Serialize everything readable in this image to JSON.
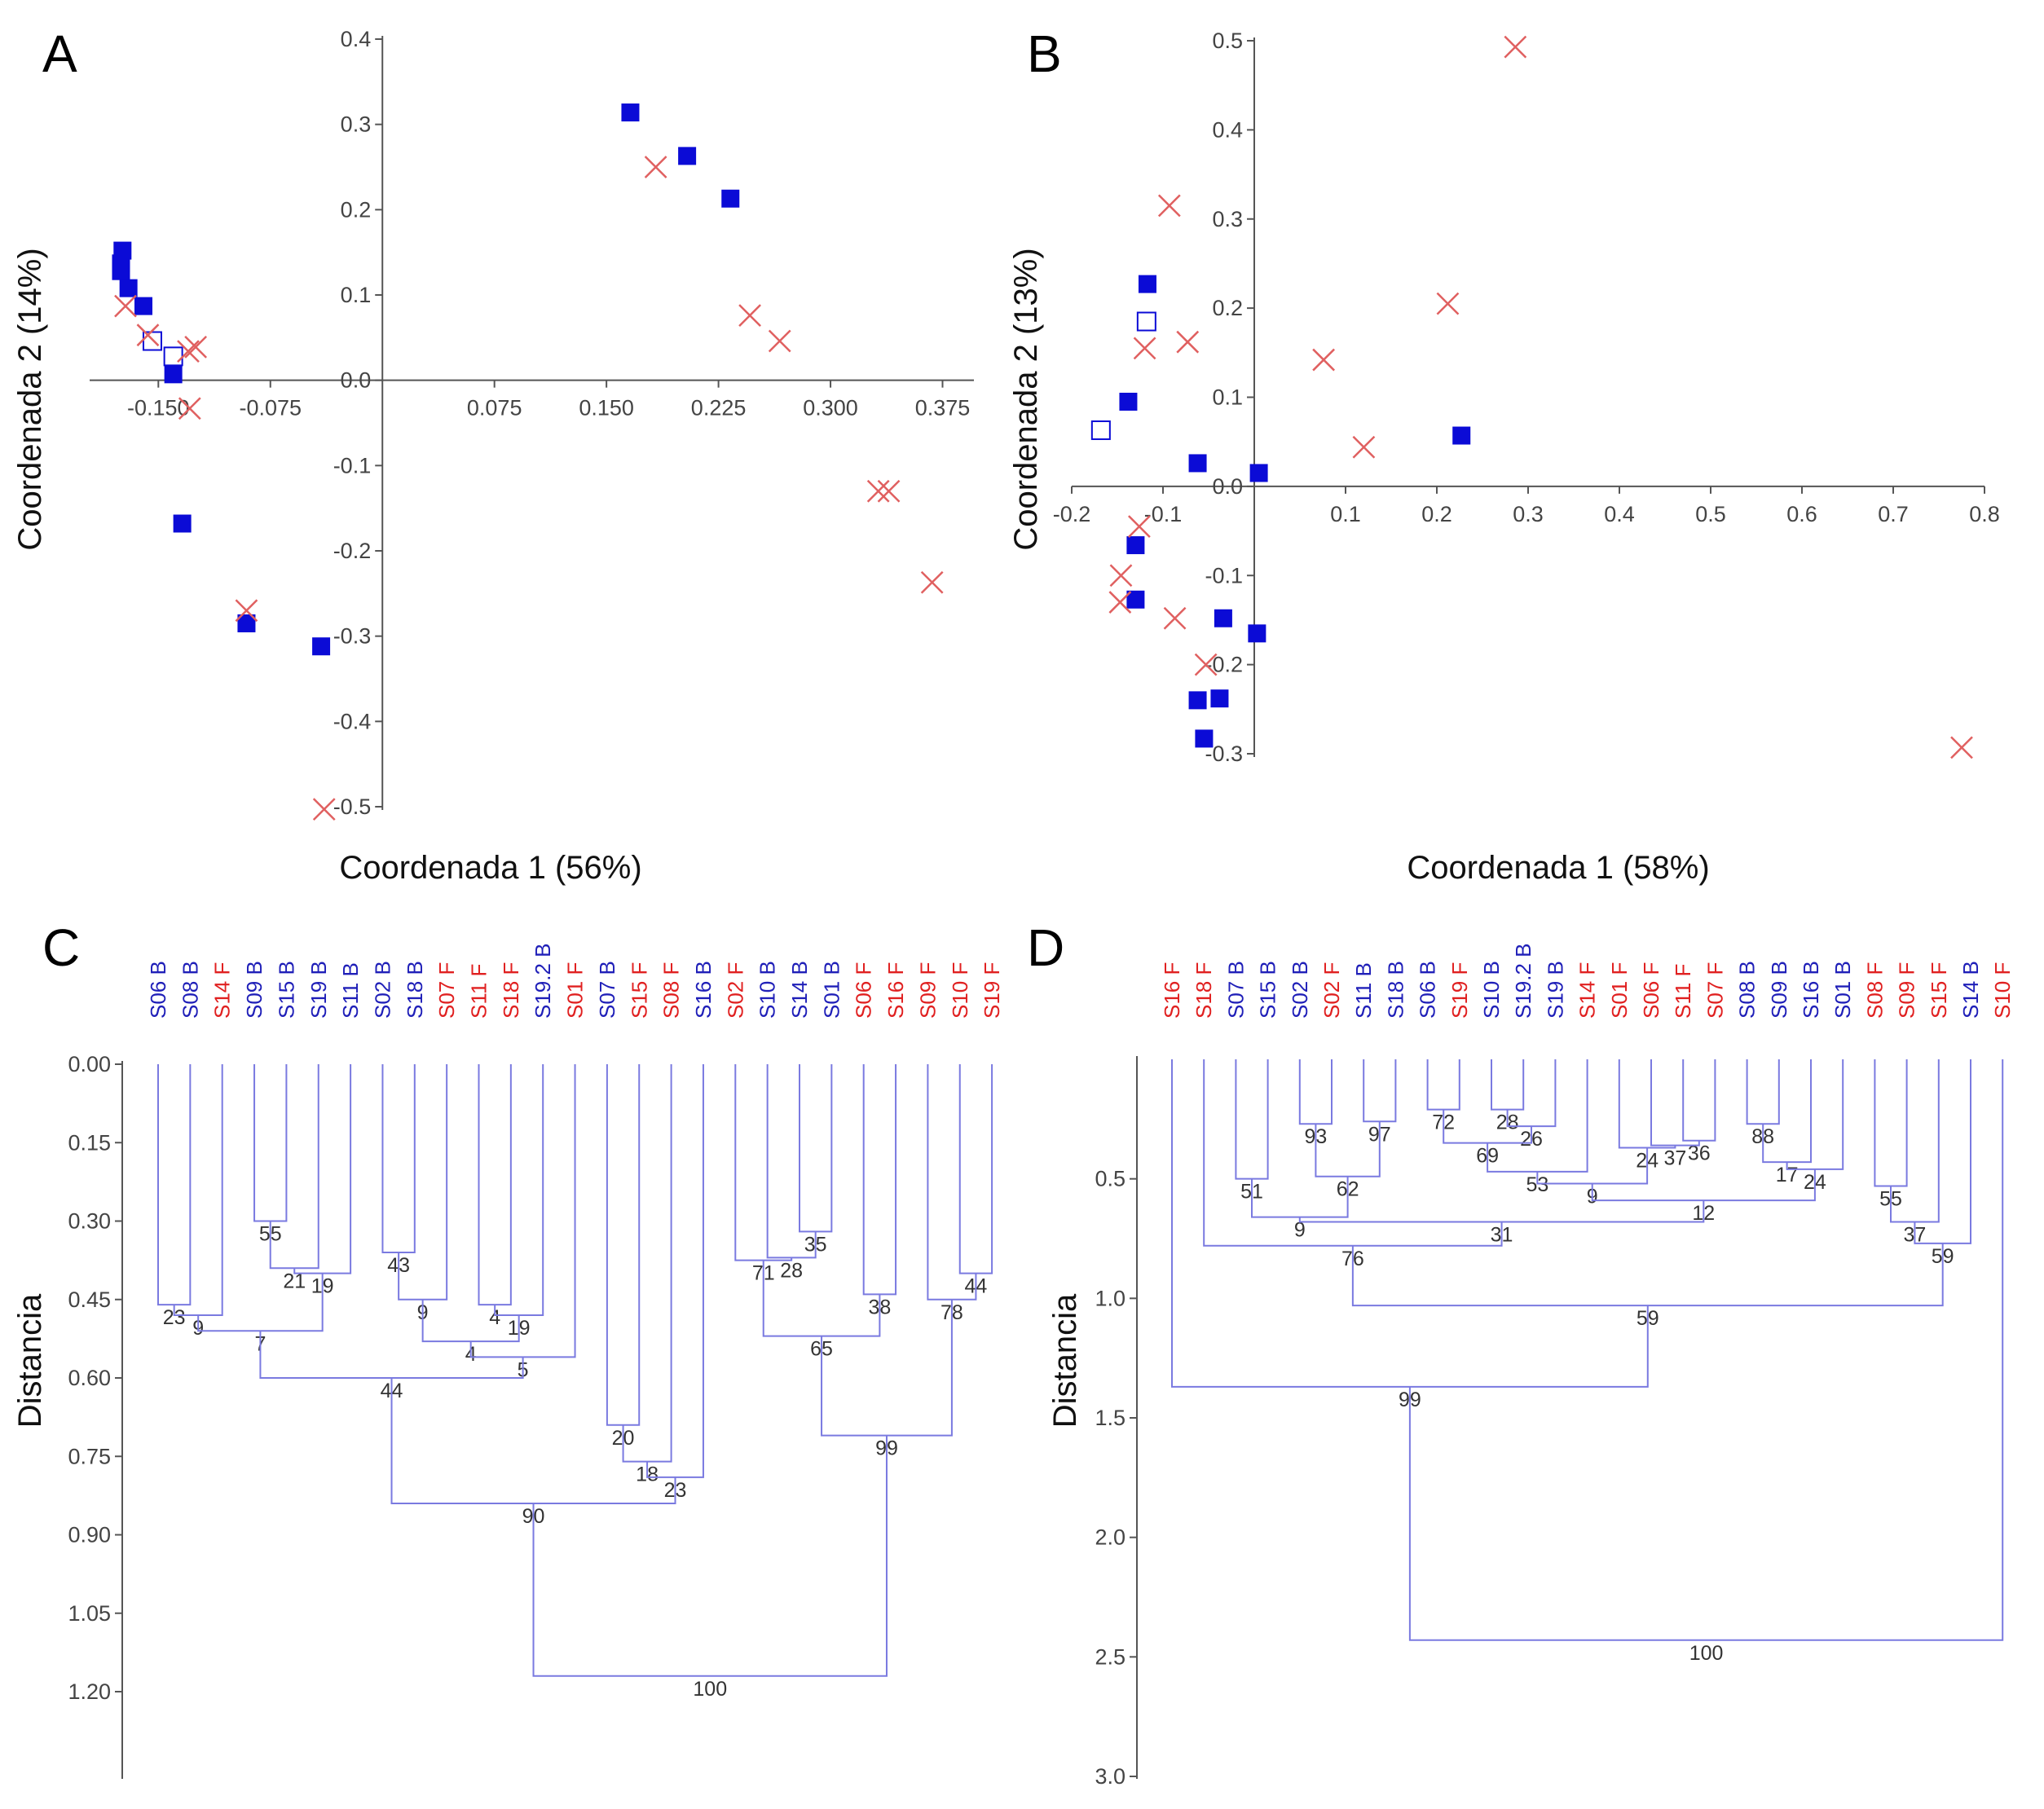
{
  "figure": {
    "colors": {
      "B": "#1f1fb8",
      "F": "#e02020",
      "marker_blue": "#0b0bd6",
      "marker_red": "#e06060",
      "tree": "#7a7ae0",
      "axis": "#555555"
    }
  },
  "chart_data": [
    {
      "panel": "A",
      "type": "scatter",
      "xlabel": "Coordenada 1 (56%)",
      "ylabel": "Coordenada 2 (14%)",
      "xlim": [
        -0.196,
        0.396
      ],
      "ylim": [
        -0.5,
        0.4
      ],
      "xticks": [
        "-0.150",
        "-0.075",
        "0.075",
        "0.150",
        "0.225",
        "0.300",
        "0.375"
      ],
      "xtick_values": [
        -0.15,
        -0.075,
        0.075,
        0.15,
        0.225,
        0.3,
        0.375
      ],
      "yticks": [
        "0.4",
        "0.3",
        "0.2",
        "0.1",
        "0.0",
        "-0.1",
        "-0.2",
        "-0.3",
        "-0.4",
        "-0.5"
      ],
      "ytick_values": [
        0.4,
        0.3,
        0.2,
        0.1,
        0.0,
        -0.1,
        -0.2,
        -0.3,
        -0.4,
        -0.5
      ],
      "series": [
        {
          "name": "B",
          "marker": "filled-square",
          "points": [
            [
              -0.174,
              0.152
            ],
            [
              -0.175,
              0.137
            ],
            [
              -0.175,
              0.128
            ],
            [
              -0.17,
              0.108
            ],
            [
              -0.16,
              0.087
            ],
            [
              -0.14,
              0.007
            ],
            [
              -0.134,
              -0.168
            ],
            [
              -0.091,
              -0.285
            ],
            [
              -0.041,
              -0.312
            ],
            [
              0.166,
              0.314
            ],
            [
              0.204,
              0.263
            ],
            [
              0.233,
              0.213
            ]
          ]
        },
        {
          "name": "B-open",
          "marker": "open-square",
          "points": [
            [
              -0.154,
              0.046
            ],
            [
              -0.14,
              0.028
            ]
          ]
        },
        {
          "name": "F",
          "marker": "cross",
          "points": [
            [
              -0.172,
              0.087
            ],
            [
              -0.157,
              0.053
            ],
            [
              -0.13,
              0.034
            ],
            [
              -0.125,
              0.039
            ],
            [
              -0.129,
              -0.033
            ],
            [
              -0.091,
              -0.27
            ],
            [
              -0.039,
              -0.503
            ],
            [
              0.183,
              0.25
            ],
            [
              0.246,
              0.076
            ],
            [
              0.266,
              0.046
            ],
            [
              0.332,
              -0.13
            ],
            [
              0.339,
              -0.13
            ],
            [
              0.368,
              -0.237
            ]
          ]
        }
      ]
    },
    {
      "panel": "B",
      "type": "scatter",
      "xlabel": "Coordenada 1 (58%)",
      "ylabel": "Coordenada 2 (13%)",
      "xlim": [
        -0.2,
        0.8
      ],
      "ylim": [
        -0.3,
        0.5
      ],
      "xticks": [
        "-0.2",
        "-0.1",
        "0.1",
        "0.2",
        "0.3",
        "0.4",
        "0.5",
        "0.6",
        "0.7",
        "0.8"
      ],
      "xtick_values": [
        -0.2,
        -0.1,
        0.1,
        0.2,
        0.3,
        0.4,
        0.5,
        0.6,
        0.7,
        0.8
      ],
      "yticks": [
        "0.5",
        "0.4",
        "0.3",
        "0.2",
        "0.1",
        "0.0",
        "-0.1",
        "-0.2",
        "-0.3"
      ],
      "ytick_values": [
        0.5,
        0.4,
        0.3,
        0.2,
        0.1,
        0.0,
        -0.1,
        -0.2,
        -0.3
      ],
      "series": [
        {
          "name": "B",
          "marker": "filled-square",
          "points": [
            [
              -0.117,
              0.227
            ],
            [
              -0.138,
              0.095
            ],
            [
              -0.062,
              0.026
            ],
            [
              0.005,
              0.015
            ],
            [
              0.227,
              0.057
            ],
            [
              -0.13,
              -0.066
            ],
            [
              -0.13,
              -0.127
            ],
            [
              -0.034,
              -0.148
            ],
            [
              0.003,
              -0.165
            ],
            [
              -0.062,
              -0.24
            ],
            [
              -0.038,
              -0.238
            ],
            [
              -0.055,
              -0.283
            ]
          ]
        },
        {
          "name": "B-open",
          "marker": "open-square",
          "points": [
            [
              -0.118,
              0.185
            ],
            [
              -0.168,
              0.063
            ]
          ]
        },
        {
          "name": "F",
          "marker": "cross",
          "points": [
            [
              0.286,
              0.493
            ],
            [
              -0.093,
              0.315
            ],
            [
              -0.12,
              0.155
            ],
            [
              -0.073,
              0.162
            ],
            [
              0.076,
              0.142
            ],
            [
              0.12,
              0.044
            ],
            [
              0.212,
              0.205
            ],
            [
              -0.126,
              -0.045
            ],
            [
              -0.146,
              -0.1
            ],
            [
              -0.147,
              -0.13
            ],
            [
              -0.087,
              -0.148
            ],
            [
              -0.053,
              -0.2
            ],
            [
              0.775,
              -0.293
            ]
          ]
        }
      ]
    },
    {
      "panel": "C",
      "type": "dendrogram",
      "ylabel": "Distancia",
      "ylim": [
        0.0,
        1.32
      ],
      "yticks": [
        "0.00",
        "0.15",
        "0.30",
        "0.45",
        "0.60",
        "0.75",
        "0.90",
        "1.05",
        "1.20"
      ],
      "ytick_values": [
        0.0,
        0.15,
        0.3,
        0.45,
        0.6,
        0.75,
        0.9,
        1.05,
        1.2
      ],
      "leaves": [
        "S06 B",
        "S08 B",
        "S14 F",
        "S09 B",
        "S15 B",
        "S19 B",
        "S11 B",
        "S02 B",
        "S18 B",
        "S07 F",
        "S11 F",
        "S18 F",
        "S19.2 B",
        "S01 F",
        "S07 B",
        "S15 F",
        "S08 F",
        "S16 B",
        "S02 F",
        "S10 B",
        "S14 B",
        "S01 B",
        "S06 F",
        "S16 F",
        "S09 F",
        "S10 F",
        "S19 F"
      ],
      "merges": [
        {
          "a": 3,
          "b": 4,
          "h": 0.3,
          "label": "55"
        },
        {
          "a": 25,
          "b": 26,
          "h": 0.4,
          "label": "44"
        },
        {
          "a": 20,
          "b": 21,
          "h": 0.32,
          "label": "35"
        },
        {
          "a": 7,
          "b": 8,
          "h": 0.36,
          "label": "43"
        },
        {
          "a": 19,
          "b": "m2",
          "h": 0.37,
          "label": "28"
        },
        {
          "a": 18,
          "b": "m4",
          "h": 0.375,
          "label": "71"
        },
        {
          "a": "m0",
          "b": 5,
          "h": 0.39,
          "label": "21"
        },
        {
          "a": "m6",
          "b": 6,
          "h": 0.4,
          "label": "19"
        },
        {
          "a": 0,
          "b": 1,
          "h": 0.46,
          "label": "23"
        },
        {
          "a": 10,
          "b": 11,
          "h": 0.46,
          "label": "4"
        },
        {
          "a": "m9",
          "b": 12,
          "h": 0.48,
          "label": "19"
        },
        {
          "a": 24,
          "b": "m1",
          "h": 0.45,
          "label": "78"
        },
        {
          "a": "m3",
          "b": 9,
          "h": 0.45,
          "label": "9"
        },
        {
          "a": "m12",
          "b": "m10",
          "h": 0.53,
          "label": "4"
        },
        {
          "a": "m8",
          "b": 2,
          "h": 0.48,
          "label": "9"
        },
        {
          "a": "m14",
          "b": "m7",
          "h": 0.51,
          "label": "7"
        },
        {
          "a": "m13",
          "b": 13,
          "h": 0.56,
          "label": "5"
        },
        {
          "a": 22,
          "b": 23,
          "h": 0.44,
          "label": "38"
        },
        {
          "a": "m5",
          "b": "m17",
          "h": 0.52,
          "label": "65"
        },
        {
          "a": "m15",
          "b": "m16",
          "h": 0.6,
          "label": "44"
        },
        {
          "a": 14,
          "b": 15,
          "h": 0.69,
          "label": "20"
        },
        {
          "a": "m20",
          "b": 16,
          "h": 0.76,
          "label": "18"
        },
        {
          "a": "m21",
          "b": 17,
          "h": 0.79,
          "label": "23"
        },
        {
          "a": "m18",
          "b": "m11",
          "h": 0.71,
          "label": "99"
        },
        {
          "a": "m19",
          "b": "m22",
          "h": 0.84,
          "label": "90"
        },
        {
          "a": "m24",
          "b": "m23",
          "h": 1.17,
          "label": "100"
        }
      ]
    },
    {
      "panel": "D",
      "type": "dendrogram",
      "ylabel": "Distancia",
      "ylim": [
        0.0,
        3.0
      ],
      "yticks": [
        "0.5",
        "1.0",
        "1.5",
        "2.0",
        "2.5",
        "3.0"
      ],
      "ytick_values": [
        0.5,
        1.0,
        1.5,
        2.0,
        2.5,
        3.0
      ],
      "leaves": [
        "S16 F",
        "S18 F",
        "S07 B",
        "S15 B",
        "S02 B",
        "S02 F",
        "S11 B",
        "S18 B",
        "S06 B",
        "S19 F",
        "S10 B",
        "S19.2 B",
        "S19 B",
        "S14 F",
        "S01 F",
        "S06 F",
        "S11 F",
        "S07 F",
        "S08 B",
        "S09 B",
        "S16 B",
        "S01 B",
        "S08 F",
        "S09 F",
        "S15 F",
        "S14 B",
        "S10 F"
      ],
      "merges": [
        {
          "a": 4,
          "b": 5,
          "h": 0.27,
          "label": "93"
        },
        {
          "a": 6,
          "b": 7,
          "h": 0.26,
          "label": "97"
        },
        {
          "a": 8,
          "b": 9,
          "h": 0.21,
          "label": "72"
        },
        {
          "a": 10,
          "b": 11,
          "h": 0.21,
          "label": "28"
        },
        {
          "a": "m3",
          "b": 12,
          "h": 0.28,
          "label": "26"
        },
        {
          "a": "m2",
          "b": "m4",
          "h": 0.35,
          "label": "69"
        },
        {
          "a": 16,
          "b": 17,
          "h": 0.34,
          "label": "36"
        },
        {
          "a": 15,
          "b": "m6",
          "h": 0.36,
          "label": "37"
        },
        {
          "a": 18,
          "b": 19,
          "h": 0.27,
          "label": "88"
        },
        {
          "a": "m8",
          "b": 20,
          "h": 0.43,
          "label": "17"
        },
        {
          "a": "m9",
          "b": 21,
          "h": 0.46,
          "label": "24"
        },
        {
          "a": "m7",
          "b": 14,
          "h": 0.37,
          "label": "24"
        },
        {
          "a": "m5",
          "b": 13,
          "h": 0.47,
          "label": "53"
        },
        {
          "a": "m12",
          "b": "m11",
          "h": 0.52,
          "label": "9"
        },
        {
          "a": "m13",
          "b": "m10",
          "h": 0.59,
          "label": "12"
        },
        {
          "a": "m0",
          "b": "m1",
          "h": 0.49,
          "label": "62"
        },
        {
          "a": 2,
          "b": 3,
          "h": 0.5,
          "label": "51"
        },
        {
          "a": "m16",
          "b": "m15",
          "h": 0.66,
          "label": "9"
        },
        {
          "a": "m17",
          "b": "m14",
          "h": 0.68,
          "label": "31"
        },
        {
          "a": 1,
          "b": "m18",
          "h": 0.78,
          "label": "76"
        },
        {
          "a": 22,
          "b": 23,
          "h": 0.53,
          "label": "55"
        },
        {
          "a": "m20",
          "b": 24,
          "h": 0.68,
          "label": "37"
        },
        {
          "a": "m21",
          "b": 25,
          "h": 0.77,
          "label": "59"
        },
        {
          "a": "m19",
          "b": "m22",
          "h": 1.03,
          "label": "59"
        },
        {
          "a": 0,
          "b": "m23",
          "h": 1.37,
          "label": "99"
        },
        {
          "a": "m24",
          "b": 26,
          "h": 2.43,
          "label": "100"
        }
      ]
    }
  ]
}
